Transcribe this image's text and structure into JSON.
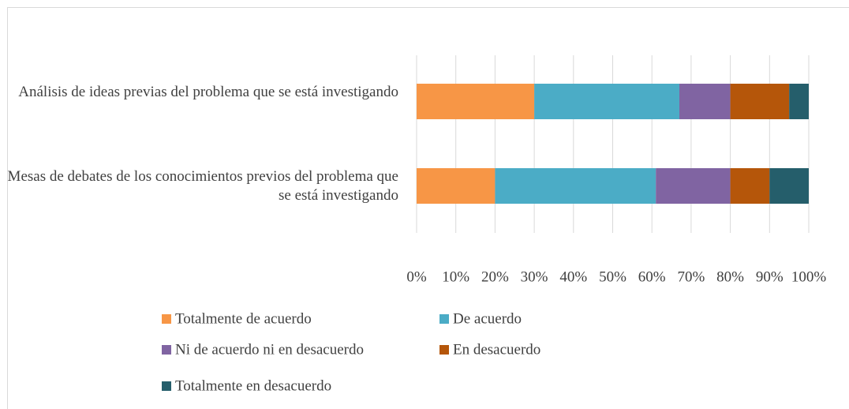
{
  "chart_data": {
    "type": "stacked-bar-horizontal",
    "categories": [
      "Análisis de ideas previas del problema que se está investigando",
      "Mesas de debates de los conocimientos previos del problema que se está investigando"
    ],
    "series": [
      {
        "name": "Totalmente de acuerdo",
        "color": "#f79646",
        "values": [
          30,
          20
        ]
      },
      {
        "name": "De acuerdo",
        "color": "#4bacc6",
        "values": [
          37,
          41
        ]
      },
      {
        "name": "Ni de acuerdo ni en desacuerdo",
        "color": "#8064a2",
        "values": [
          13,
          19
        ]
      },
      {
        "name": "En desacuerdo",
        "color": "#b5560a",
        "values": [
          15,
          10
        ]
      },
      {
        "name": "Totalmente en desacuerdo",
        "color": "#255e6b",
        "values": [
          5,
          10
        ]
      }
    ],
    "xlim": [
      0,
      100
    ],
    "xticks": [
      {
        "value": 0,
        "label": "0%"
      },
      {
        "value": 10,
        "label": "10%"
      },
      {
        "value": 20,
        "label": "20%"
      },
      {
        "value": 30,
        "label": "30%"
      },
      {
        "value": 40,
        "label": "40%"
      },
      {
        "value": 50,
        "label": "50%"
      },
      {
        "value": 60,
        "label": "60%"
      },
      {
        "value": 70,
        "label": "70%"
      },
      {
        "value": 80,
        "label": "80%"
      },
      {
        "value": 90,
        "label": "90%"
      },
      {
        "value": 100,
        "label": "100%"
      }
    ],
    "grid": true,
    "legend": "bottom"
  }
}
